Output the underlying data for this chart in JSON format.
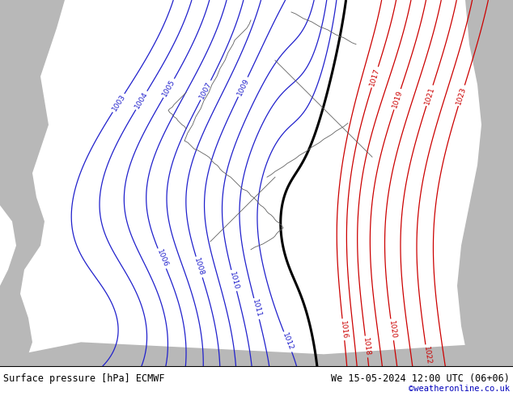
{
  "title_left": "Surface pressure [hPa] ECMWF",
  "title_right": "We 15-05-2024 12:00 UTC (06+06)",
  "watermark": "©weatheronline.co.uk",
  "bg_green": "#aace50",
  "bg_sea_grey": "#b8b8b8",
  "bg_sea_light": "#c8c8c8",
  "border_color": "#606060",
  "blue_isobar": "#2020cc",
  "red_isobar": "#cc0000",
  "black_front": "#000000",
  "bottom_bg": "#ffffff",
  "watermark_color": "#0000bb",
  "fig_width": 6.34,
  "fig_height": 4.9,
  "dpi": 100
}
